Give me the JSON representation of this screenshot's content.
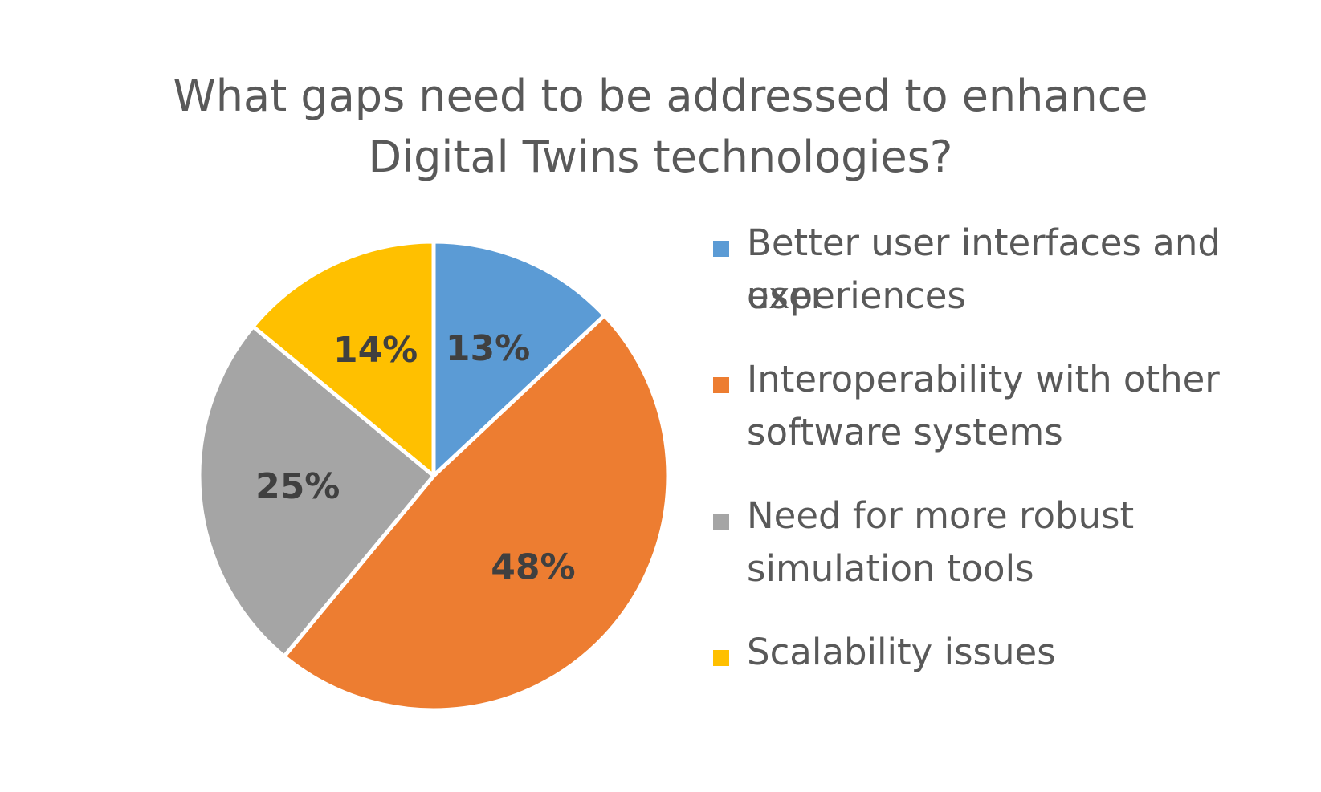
{
  "chart_data": {
    "type": "pie",
    "title_lines": [
      "What gaps need to be addressed to enhance",
      "Digital Twins technologies?"
    ],
    "slices": [
      {
        "label": "Better user interfaces and user experiences",
        "value": 13,
        "display": "13%",
        "color": "#5B9BD5"
      },
      {
        "label": "Interoperability with other software systems",
        "value": 48,
        "display": "48%",
        "color": "#ED7D31"
      },
      {
        "label": "Need for more robust simulation tools",
        "value": 25,
        "display": "25%",
        "color": "#A5A5A5"
      },
      {
        "label": "Scalability issues",
        "value": 14,
        "display": "14%",
        "color": "#FFC000"
      }
    ],
    "legend_position": "right",
    "legend_lines": [
      [
        "Better user interfaces and user",
        "experiences"
      ],
      [
        "Interoperability with other",
        "software systems"
      ],
      [
        "Need for more robust",
        "simulation tools"
      ],
      [
        "Scalability issues"
      ]
    ]
  }
}
